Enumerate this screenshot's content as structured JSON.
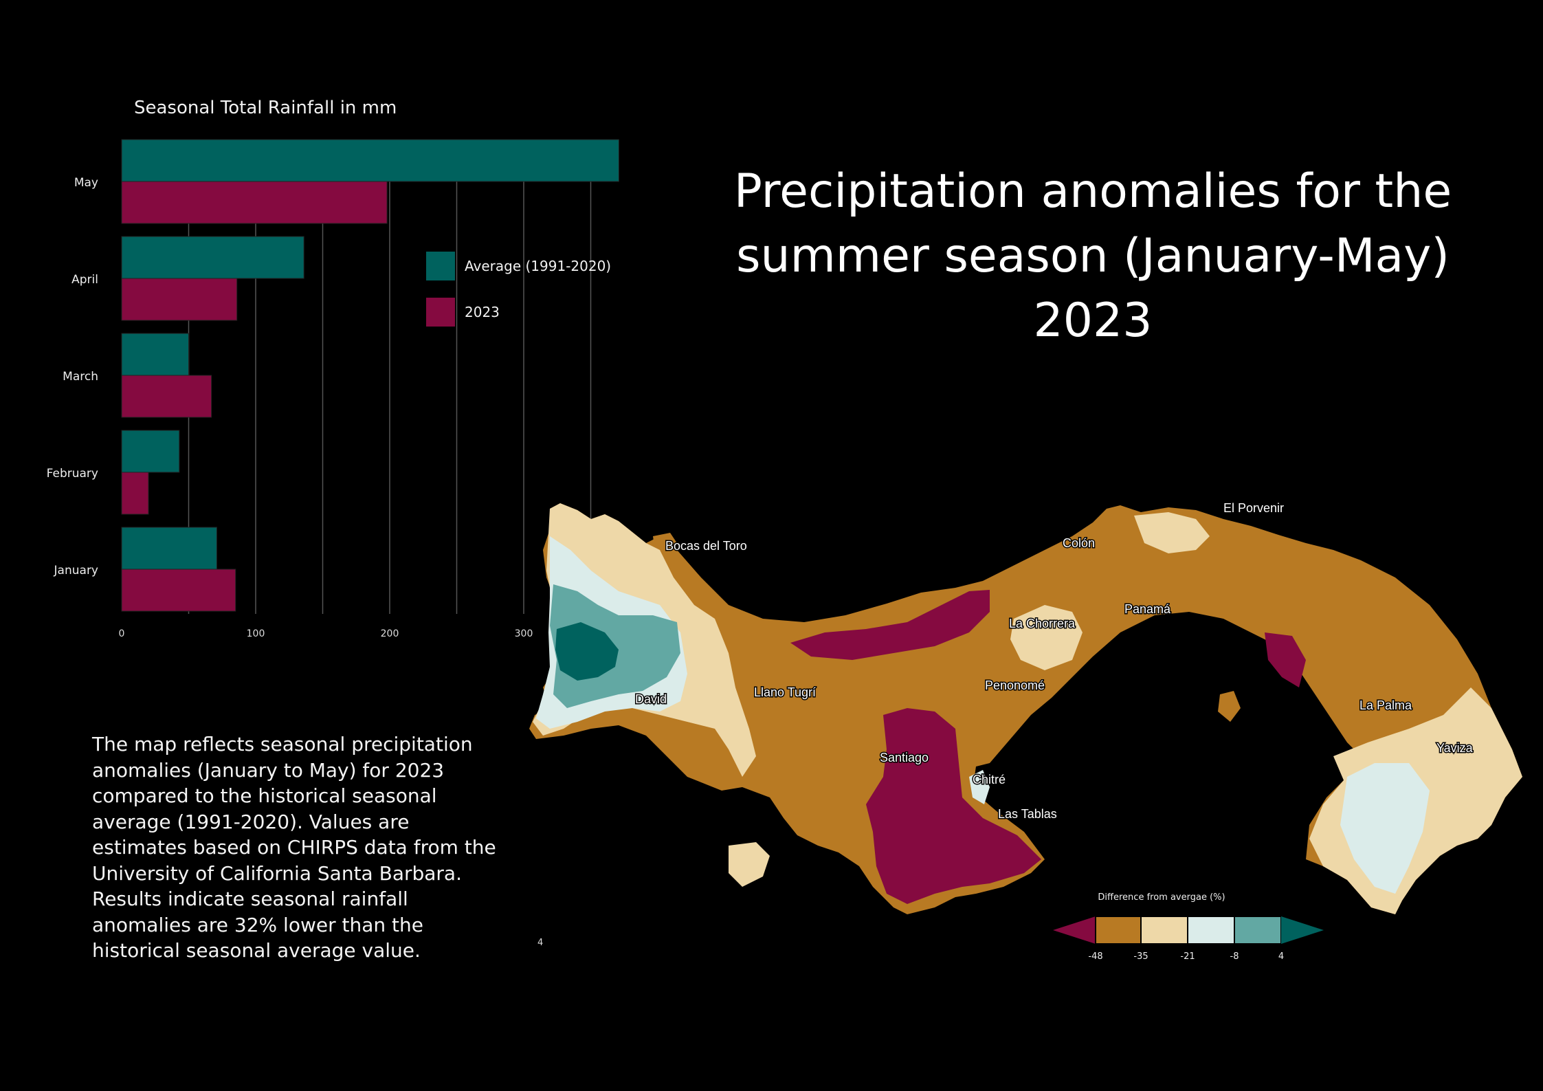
{
  "main_title": {
    "line1": "Precipitation anomalies for the",
    "line2": "summer season (January-May) 2023"
  },
  "description": "The map reflects seasonal precipitation anomalies (January to May) for 2023 compared to the historical seasonal average (1991-2020). Values are estimates based on CHIRPS data from the University of California Santa Barbara. Results indicate seasonal rainfall anomalies are 32% lower than the historical seasonal average value.",
  "page_number": "4",
  "chart_data": {
    "type": "bar",
    "orientation": "horizontal",
    "title": "Seasonal Total Rainfall in mm",
    "categories": [
      "May",
      "April",
      "March",
      "February",
      "January"
    ],
    "series": [
      {
        "name": "Average (1991-2020)",
        "color": "#00625e",
        "values": [
          371,
          136,
          50,
          43,
          71
        ]
      },
      {
        "name": "2023",
        "color": "#850a40",
        "values": [
          198,
          86,
          67,
          20,
          85
        ]
      }
    ],
    "xticks": [
      0,
      100,
      200,
      300
    ],
    "xlim": [
      0,
      370
    ],
    "grid": "vertical",
    "legend_position": "right"
  },
  "map": {
    "legend_title": "Difference from avergae (%)",
    "legend_ticks": [
      "-48",
      "-35",
      "-21",
      "-8",
      "4"
    ],
    "classes": [
      "#850a40",
      "#b87a23",
      "#eed8a8",
      "#dbecea",
      "#62a8a3",
      "#00625e"
    ],
    "cities": [
      "El Porvenir",
      "Bocas del Toro",
      "Colón",
      "Panamá",
      "La Chorrera",
      "Penonomé",
      "Llano Tugrí",
      "David",
      "Santiago",
      "Chitré",
      "Las Tablas",
      "La Palma",
      "Yaviza"
    ]
  }
}
